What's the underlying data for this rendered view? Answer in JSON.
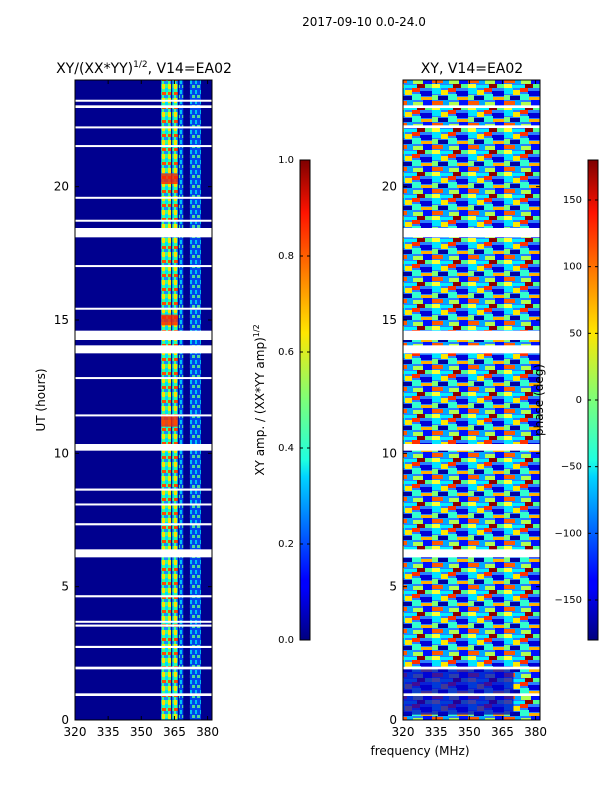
{
  "figure": {
    "suptitle": "2017-09-10 0.0-24.0"
  },
  "chart_data": [
    {
      "type": "heatmap",
      "title": "XY/(XX*YY)",
      "title_exponent": "1/2",
      "title_suffix": ", V14=EA02",
      "xlabel": "",
      "ylabel": "UT (hours)",
      "xlim": [
        320,
        382
      ],
      "ylim": [
        0,
        24
      ],
      "xticks": [
        320,
        335,
        350,
        365,
        380
      ],
      "yticks": [
        0,
        5,
        10,
        15,
        20
      ],
      "colorbar": {
        "label": "XY amp. / (XX*YY amp)",
        "label_exponent": "1/2",
        "range": [
          0.0,
          1.0
        ],
        "ticks": [
          "0.0",
          "0.2",
          "0.4",
          "0.6",
          "0.8",
          "1.0"
        ],
        "colormap": "jet"
      },
      "gap_bands_hours": [
        [
          0.9,
          1.0
        ],
        [
          1.9,
          2.0
        ],
        [
          2.7,
          2.78
        ],
        [
          3.5,
          3.58
        ],
        [
          3.65,
          3.72
        ],
        [
          4.6,
          4.68
        ],
        [
          6.1,
          6.4
        ],
        [
          7.3,
          7.38
        ],
        [
          8.05,
          8.12
        ],
        [
          8.6,
          8.68
        ],
        [
          10.1,
          10.35
        ],
        [
          11.4,
          11.46
        ],
        [
          12.8,
          12.86
        ],
        [
          13.75,
          14.05
        ],
        [
          14.25,
          14.6
        ],
        [
          15.4,
          15.46
        ],
        [
          17.0,
          17.06
        ],
        [
          18.1,
          18.45
        ],
        [
          18.7,
          18.76
        ],
        [
          19.55,
          19.62
        ],
        [
          21.5,
          21.56
        ],
        [
          22.2,
          22.26
        ],
        [
          22.95,
          23.05
        ],
        [
          23.2,
          23.26
        ]
      ],
      "active_bands_mhz": [
        [
          359,
          363.5
        ],
        [
          364,
          366.5
        ],
        [
          367,
          369
        ],
        [
          372,
          377
        ]
      ]
    },
    {
      "type": "heatmap",
      "title": "XY, V14=EA02",
      "xlabel": "frequency (MHz)",
      "ylabel": "",
      "xlim": [
        320,
        382
      ],
      "ylim": [
        0,
        24
      ],
      "xticks": [
        320,
        335,
        350,
        365,
        380
      ],
      "yticks": [
        0,
        5,
        10,
        15,
        20
      ],
      "colorbar": {
        "label": "phase (deg)",
        "range": [
          -180,
          180
        ],
        "ticks": [
          "−150",
          "−100",
          "−50",
          "0",
          "50",
          "100",
          "150"
        ],
        "colormap": "jet"
      },
      "gap_bands_hours": [
        [
          0.9,
          1.0
        ],
        [
          1.9,
          2.0
        ],
        [
          6.1,
          6.4
        ],
        [
          10.1,
          10.35
        ],
        [
          13.75,
          14.05
        ],
        [
          14.25,
          14.6
        ],
        [
          18.1,
          18.45
        ],
        [
          22.2,
          22.3
        ],
        [
          22.95,
          23.05
        ]
      ]
    }
  ]
}
